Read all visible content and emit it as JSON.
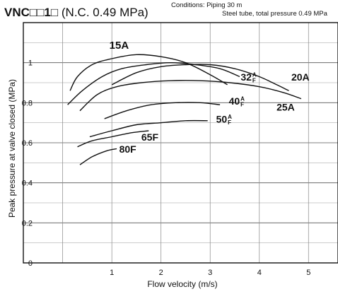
{
  "header": {
    "model": "VNC□□1□",
    "condition": "(N.C. 0.49 MPa)",
    "conditions_line1": "Conditions: Piping 30 m",
    "conditions_line2": "Steel tube, total pressure 0.49 MPa"
  },
  "chart_data": {
    "type": "line",
    "xlabel": "Flow velocity (m/s)",
    "ylabel": "Peak pressure at valve closed (MPa)",
    "xlim": [
      -0.8,
      5.6
    ],
    "ylim": [
      0,
      1.2
    ],
    "xticks": [
      1,
      2,
      3,
      4,
      5
    ],
    "xtick_labels": [
      "1",
      "2",
      "3",
      "4",
      "5"
    ],
    "yticks": [
      0,
      0.2,
      0.4,
      0.6,
      0.8,
      1
    ],
    "ytick_labels": [
      "0",
      "0.2",
      "0.4",
      "0.6",
      "0.8",
      "1"
    ],
    "grid": true,
    "series": [
      {
        "name": "15A",
        "x": [
          0.15,
          0.3,
          0.6,
          1.0,
          1.5,
          2.0,
          2.5,
          3.0,
          3.35
        ],
        "y": [
          0.86,
          0.93,
          0.99,
          1.02,
          1.04,
          1.03,
          1.0,
          0.94,
          0.89
        ]
      },
      {
        "name": "32A/F",
        "x": [
          0.1,
          0.4,
          0.8,
          1.2,
          1.7,
          2.2,
          2.7,
          3.2,
          3.6
        ],
        "y": [
          0.79,
          0.86,
          0.93,
          0.97,
          0.99,
          1.0,
          0.99,
          0.97,
          0.93
        ]
      },
      {
        "name": "20A",
        "x": [
          1.0,
          1.5,
          2.0,
          2.5,
          3.0,
          3.5,
          4.0,
          4.35,
          4.6
        ],
        "y": [
          0.89,
          0.95,
          0.98,
          0.99,
          0.99,
          0.97,
          0.93,
          0.89,
          0.86
        ]
      },
      {
        "name": "25A",
        "x": [
          0.35,
          0.7,
          1.1,
          1.6,
          2.2,
          2.8,
          3.4,
          4.0,
          4.5,
          4.85
        ],
        "y": [
          0.76,
          0.84,
          0.88,
          0.9,
          0.91,
          0.91,
          0.9,
          0.88,
          0.85,
          0.82
        ]
      },
      {
        "name": "40A/F",
        "x": [
          0.85,
          1.3,
          1.8,
          2.3,
          2.8,
          3.2
        ],
        "y": [
          0.72,
          0.76,
          0.79,
          0.8,
          0.8,
          0.79
        ]
      },
      {
        "name": "50A/F",
        "x": [
          0.55,
          1.0,
          1.5,
          2.0,
          2.5,
          2.95
        ],
        "y": [
          0.63,
          0.66,
          0.69,
          0.7,
          0.71,
          0.71
        ]
      },
      {
        "name": "65F",
        "x": [
          0.3,
          0.6,
          1.0,
          1.4,
          1.75
        ],
        "y": [
          0.58,
          0.61,
          0.63,
          0.65,
          0.66
        ]
      },
      {
        "name": "80F",
        "x": [
          0.35,
          0.6,
          0.9,
          1.1
        ],
        "y": [
          0.49,
          0.53,
          0.56,
          0.57
        ]
      }
    ],
    "labels": [
      {
        "text": "15A",
        "sup": "",
        "x": 0.95,
        "y": 1.07,
        "size": 15
      },
      {
        "text": "32",
        "sup": "A/F",
        "x": 3.62,
        "y": 0.91,
        "size": 14
      },
      {
        "text": "20A",
        "sup": "",
        "x": 4.65,
        "y": 0.91,
        "size": 14
      },
      {
        "text": "25A",
        "sup": "",
        "x": 4.35,
        "y": 0.76,
        "size": 14
      },
      {
        "text": "40",
        "sup": "A/F",
        "x": 3.38,
        "y": 0.79,
        "size": 14
      },
      {
        "text": "50",
        "sup": "A/F",
        "x": 3.12,
        "y": 0.7,
        "size": 14
      },
      {
        "text": "65F",
        "sup": "",
        "x": 1.6,
        "y": 0.61,
        "size": 14
      },
      {
        "text": "80F",
        "sup": "",
        "x": 1.15,
        "y": 0.55,
        "size": 14
      }
    ]
  }
}
